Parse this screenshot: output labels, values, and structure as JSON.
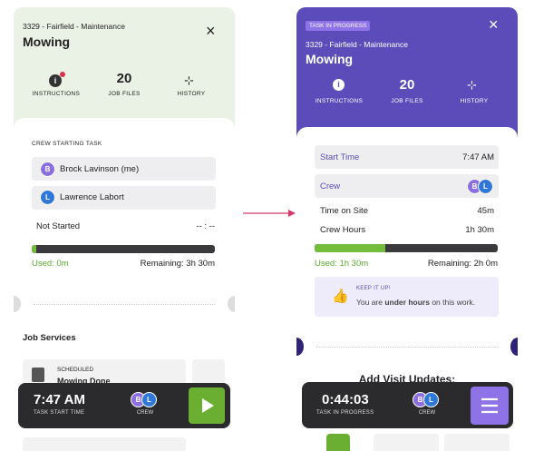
{
  "left": {
    "header": {
      "subtitle": "3329 - Fairfield - Maintenance",
      "title": "Mowing",
      "close": "×"
    },
    "tabs": [
      {
        "label": "INSTRUCTIONS"
      },
      {
        "value": "20",
        "label": "JOB FILES"
      },
      {
        "label": "HISTORY"
      }
    ],
    "crew_heading": "CREW STARTING TASK",
    "crew": [
      {
        "initial": "B",
        "name": "Brock Lavinson (me)"
      },
      {
        "initial": "L",
        "name": "Lawrence Labort"
      }
    ],
    "status": {
      "label": "Not Started",
      "time": "-- : --"
    },
    "used": "Used: 0m",
    "remaining": "Remaining: 3h 30m",
    "section": "Job Services",
    "service": {
      "tag": "SCHEDULED",
      "name": "Mowing Done"
    },
    "bar": {
      "time": "7:47 AM",
      "time_label": "TASK START TIME",
      "crew": [
        "B",
        "L"
      ],
      "crew_label": "CREW"
    }
  },
  "right": {
    "badge": "TASK IN PROGRESS",
    "header": {
      "subtitle": "3329 - Fairfield - Maintenance",
      "title": "Mowing",
      "close": "×"
    },
    "tabs": [
      {
        "label": "INSTRUCTIONS"
      },
      {
        "value": "20",
        "label": "JOB FILES"
      },
      {
        "label": "HISTORY"
      }
    ],
    "rows": [
      {
        "label": "Start Time",
        "value": "7:47 AM"
      },
      {
        "label": "Crew",
        "crew": [
          "B",
          "L"
        ]
      },
      {
        "label": "Time on Site",
        "value": "45m"
      },
      {
        "label": "Crew Hours",
        "value": "1h 30m"
      }
    ],
    "used": "Used: 1h 30m",
    "remaining": "Remaining: 2h 0m",
    "tip": {
      "title": "KEEP IT UP!",
      "pre": "You are ",
      "bold": "under hours",
      "post": " on this work."
    },
    "section": "Add Visit Updates:",
    "bar": {
      "time": "0:44:03",
      "time_label": "TASK IN PROGRESS",
      "crew": [
        "B",
        "L"
      ],
      "crew_label": "CREW"
    }
  }
}
